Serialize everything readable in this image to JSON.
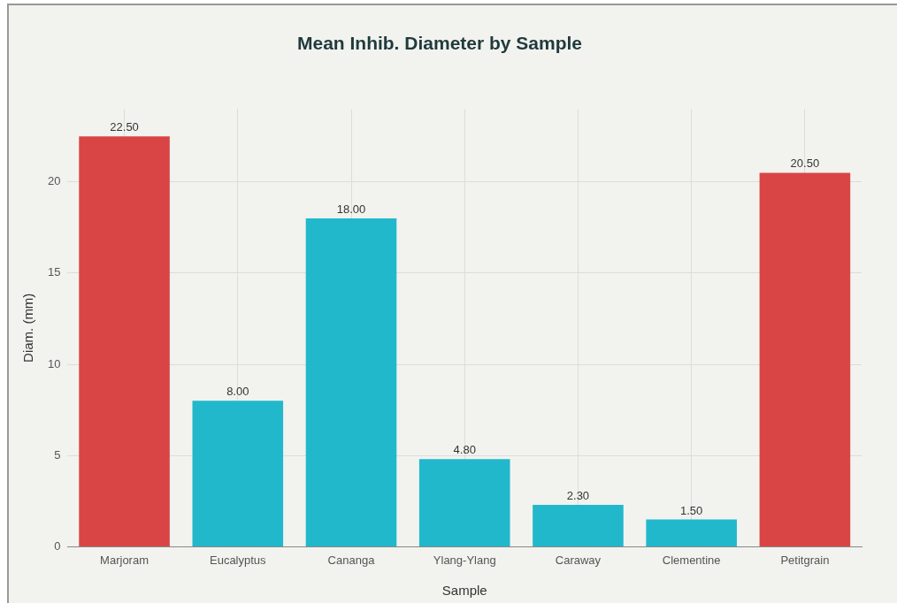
{
  "chart_data": {
    "type": "bar",
    "title": "Mean Inhib. Diameter by Sample",
    "xlabel": "Sample",
    "ylabel": "Diam. (mm)",
    "categories": [
      "Marjoram",
      "Eucalyptus",
      "Cananga",
      "Ylang-Ylang",
      "Caraway",
      "Clementine",
      "Petitgrain"
    ],
    "values": [
      22.5,
      8,
      18,
      4.8,
      2.3,
      1.5,
      20.5
    ],
    "colors": [
      "#d94545",
      "#21b8cc",
      "#21b8cc",
      "#21b8cc",
      "#21b8cc",
      "#21b8cc",
      "#d94545"
    ],
    "value_labels": [
      "22.50",
      "8.00",
      "18.00",
      "4.80",
      "2.30",
      "1.50",
      "20.50"
    ],
    "ylim": [
      0,
      24
    ],
    "yticks": [
      0,
      5,
      10,
      15,
      20
    ],
    "grid": true,
    "legend": false
  }
}
